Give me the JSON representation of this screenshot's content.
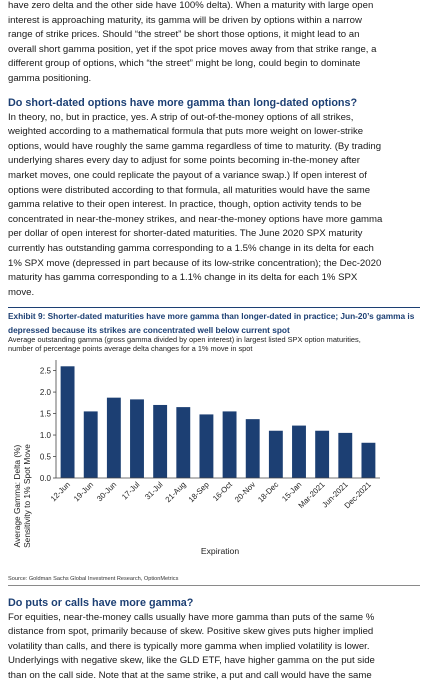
{
  "intro_lines": [
    "have zero delta and the other side have 100% delta). When a maturity with large open",
    "interest is approaching maturity, its gamma will be driven by options within a narrow",
    "range of strike prices. Should “the street” be short those options, it might lead to an",
    "overall short gamma position, yet if the spot price moves away from that strike range, a",
    "different group of options, which “the street” might be long, could begin to dominate",
    "gamma positioning."
  ],
  "section1": {
    "heading": "Do short-dated options have more gamma than long-dated options?",
    "lines": [
      "In theory, no, but in practice, yes. A strip of out-of-the-money options of all strikes,",
      "weighted according to a mathematical formula that puts more weight on lower-strike",
      "options, would have roughly the same gamma regardless of time to maturity. (By trading",
      "underlying shares every day to adjust for some points becoming in-the-money after",
      "market moves, one could replicate the payout of a variance swap.) If open interest of",
      "options were distributed according to that formula, all maturities would have the same",
      "gamma relative to their open interest. In practice, though, option activity tends to be",
      "concentrated in near-the-money strikes, and near-the-money options have more gamma",
      "per dollar of open interest for shorter-dated maturities. The June 2020 SPX maturity",
      "currently has outstanding gamma corresponding to a 1.5% change in its delta for each",
      "1% SPX move (depressed in part because of its low-strike concentration); the Dec-2020",
      "maturity has gamma corresponding to a 1.1% change in its delta for each 1% SPX",
      "move."
    ]
  },
  "exhibit": {
    "title_lines": [
      "Exhibit 9: Shorter-dated maturities have more gamma than longer-dated in practice; Jun-20’s gamma is",
      "depressed because its strikes are concentrated well below current spot"
    ],
    "subtitle_lines": [
      "Average outstanding gamma (gross gamma divided by open interest) in largest listed SPX option maturities,",
      "number of percentage points average delta changes for a 1% move in spot"
    ],
    "source": "Source: Goldman Sachs Global Investment Research, OptionMetrics"
  },
  "chart_data": {
    "type": "bar",
    "categories": [
      "12-Jun",
      "19-Jun",
      "30-Jun",
      "17-Jul",
      "31-Jul",
      "21-Aug",
      "18-Sep",
      "16-Oct",
      "20-Nov",
      "18-Dec",
      "15-Jan",
      "Mar-2021",
      "Jun-2021",
      "Dec-2021"
    ],
    "values": [
      2.6,
      1.55,
      1.87,
      1.83,
      1.7,
      1.65,
      1.48,
      1.55,
      1.37,
      1.1,
      1.22,
      1.1,
      1.05,
      0.82
    ],
    "ylabel_lines": [
      "Average Gamma: Delta (%)",
      "Sensitivity to 1% Spot Move"
    ],
    "xlabel": "Expiration",
    "ylim": [
      0,
      2.7
    ],
    "yticks": [
      "0.0",
      "0.5",
      "1.0",
      "1.5",
      "2.0",
      "2.5"
    ],
    "bar_color": "#1c3f73",
    "grid": false
  },
  "section2": {
    "heading": "Do puts or calls have more gamma?",
    "lines": [
      "For equities, near-the-money calls usually have more gamma than puts of the same %",
      "distance from spot, primarily because of skew. Positive skew gives puts higher implied",
      "volatility than calls, and there is typically more gamma when implied volatility is lower.",
      "Underlyings with negative skew, like the GLD ETF, have higher gamma on the put side",
      "than on the call side. Note that at the same strike, a put and call would have the same"
    ]
  }
}
